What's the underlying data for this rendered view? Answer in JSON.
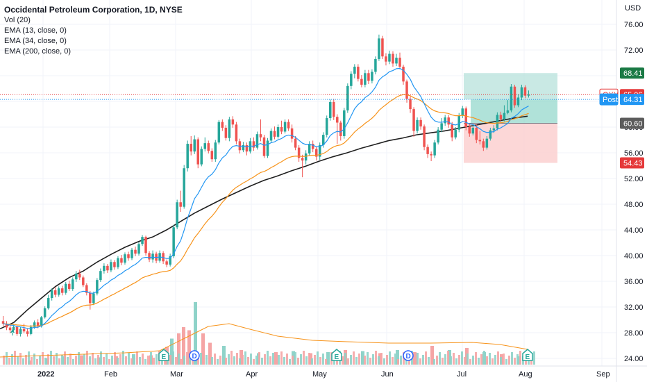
{
  "header": {
    "title": "Occidental Petroleum Corporation, 1D, NYSE",
    "indicators": [
      "Vol (20)",
      "EMA (13, close, 0)",
      "EMA (34, close, 0)",
      "EMA (200, close, 0)"
    ],
    "currency": "USD"
  },
  "colors": {
    "up": "#26a69a",
    "down": "#ef5350",
    "ema13": "#2196f3",
    "ema34": "#f7931a",
    "ema200": "#1f1f1f",
    "vol_up": "#8fd3c9",
    "vol_down": "#f5a5a5",
    "profit_zone": "#b2e0d8",
    "stop_zone": "#fbd0d0",
    "tag_green": "#1b7a45",
    "tag_red": "#e5393a",
    "tag_gray": "#5c5c5c",
    "tag_blue": "#2196f3"
  },
  "chart_data": {
    "type": "candlestick",
    "y_ticks": [
      "76.00",
      "72.00",
      "68.00",
      "64.00",
      "60.00",
      "56.00",
      "52.00",
      "48.00",
      "44.00",
      "40.00",
      "36.00",
      "32.00",
      "28.00",
      "24.00"
    ],
    "x_ticks": [
      "2022",
      "Feb",
      "Mar",
      "Apr",
      "May",
      "Jun",
      "Jul",
      "Aug",
      "Sep"
    ],
    "candles": [
      [
        29.8,
        29.4,
        30.6,
        29.0
      ],
      [
        29.4,
        28.8,
        29.8,
        28.4
      ],
      [
        28.8,
        28.4,
        29.2,
        27.9
      ],
      [
        28.4,
        28.9,
        29.3,
        28.1
      ],
      [
        28.9,
        27.8,
        29.1,
        27.5
      ],
      [
        27.8,
        28.6,
        28.9,
        27.4
      ],
      [
        28.6,
        28.2,
        29.4,
        27.9
      ],
      [
        28.2,
        27.8,
        28.6,
        27.4
      ],
      [
        27.8,
        28.9,
        29.2,
        27.6
      ],
      [
        28.9,
        29.6,
        29.9,
        28.6
      ],
      [
        29.6,
        29.0,
        30.1,
        28.7
      ],
      [
        29.0,
        30.4,
        30.6,
        28.8
      ],
      [
        30.4,
        31.8,
        32.1,
        30.2
      ],
      [
        31.8,
        33.4,
        33.9,
        31.6
      ],
      [
        33.4,
        34.6,
        34.9,
        33.0
      ],
      [
        34.6,
        33.9,
        35.1,
        33.5
      ],
      [
        33.9,
        34.9,
        35.2,
        33.6
      ],
      [
        34.9,
        34.2,
        35.3,
        33.8
      ],
      [
        34.2,
        35.6,
        35.9,
        33.9
      ],
      [
        35.6,
        34.8,
        36.1,
        34.5
      ],
      [
        34.8,
        36.3,
        36.6,
        34.5
      ],
      [
        36.3,
        37.2,
        37.6,
        35.9
      ],
      [
        37.2,
        36.6,
        37.8,
        36.2
      ],
      [
        36.6,
        35.4,
        36.9,
        35.1
      ],
      [
        35.4,
        34.2,
        35.7,
        33.8
      ],
      [
        34.2,
        32.6,
        34.5,
        31.6
      ],
      [
        32.6,
        34.1,
        34.4,
        32.3
      ],
      [
        34.1,
        36.2,
        36.5,
        33.8
      ],
      [
        36.2,
        37.6,
        38.0,
        35.9
      ],
      [
        37.6,
        38.4,
        38.8,
        37.2
      ],
      [
        38.4,
        37.7,
        38.7,
        37.3
      ],
      [
        37.7,
        39.0,
        39.4,
        37.4
      ],
      [
        39.0,
        38.2,
        39.3,
        37.8
      ],
      [
        38.2,
        39.6,
        39.9,
        37.9
      ],
      [
        39.6,
        38.9,
        40.1,
        38.5
      ],
      [
        38.9,
        40.2,
        40.5,
        38.6
      ],
      [
        40.2,
        39.6,
        40.6,
        39.2
      ],
      [
        39.6,
        40.9,
        41.2,
        39.3
      ],
      [
        40.9,
        40.3,
        41.4,
        39.9
      ],
      [
        40.3,
        41.8,
        42.1,
        40.0
      ],
      [
        41.8,
        42.9,
        43.2,
        41.5
      ],
      [
        42.9,
        40.4,
        43.1,
        40.0
      ],
      [
        40.4,
        39.4,
        40.7,
        39.0
      ],
      [
        39.4,
        40.3,
        40.8,
        38.9
      ],
      [
        40.3,
        39.2,
        40.6,
        38.8
      ],
      [
        39.2,
        40.4,
        40.8,
        38.9
      ],
      [
        40.4,
        39.1,
        40.7,
        38.7
      ],
      [
        39.1,
        38.6,
        39.4,
        38.2
      ],
      [
        38.6,
        39.9,
        40.3,
        38.3
      ],
      [
        39.9,
        44.4,
        44.8,
        39.6
      ],
      [
        44.4,
        48.3,
        48.7,
        44.1
      ],
      [
        48.3,
        47.6,
        50.1,
        46.8
      ],
      [
        47.6,
        53.6,
        54.1,
        47.3
      ],
      [
        53.6,
        57.4,
        57.9,
        53.1
      ],
      [
        57.4,
        56.2,
        58.6,
        55.6
      ],
      [
        56.2,
        58.1,
        58.7,
        55.8
      ],
      [
        58.1,
        54.2,
        58.4,
        53.6
      ],
      [
        54.2,
        56.6,
        57.0,
        53.9
      ],
      [
        56.6,
        57.5,
        58.4,
        56.2
      ],
      [
        57.5,
        56.3,
        57.9,
        55.9
      ],
      [
        56.3,
        55.0,
        56.7,
        54.6
      ],
      [
        55.0,
        57.6,
        58.0,
        54.6
      ],
      [
        57.6,
        60.8,
        61.1,
        57.3
      ],
      [
        60.8,
        59.9,
        61.2,
        59.4
      ],
      [
        59.9,
        58.3,
        60.3,
        57.9
      ],
      [
        58.3,
        61.2,
        61.6,
        57.8
      ],
      [
        61.2,
        60.4,
        61.7,
        59.9
      ],
      [
        60.4,
        57.8,
        60.8,
        57.3
      ],
      [
        57.8,
        56.4,
        58.2,
        55.9
      ],
      [
        56.4,
        57.2,
        57.7,
        56.1
      ],
      [
        57.2,
        56.2,
        57.6,
        55.6
      ],
      [
        56.2,
        57.8,
        58.3,
        55.9
      ],
      [
        57.8,
        56.8,
        58.4,
        56.3
      ],
      [
        56.8,
        58.9,
        59.3,
        56.5
      ],
      [
        58.9,
        58.4,
        61.2,
        57.8
      ],
      [
        58.4,
        55.5,
        58.8,
        55.2
      ],
      [
        55.5,
        57.9,
        58.3,
        55.2
      ],
      [
        57.9,
        59.4,
        59.8,
        57.6
      ],
      [
        59.4,
        58.5,
        60.1,
        58.1
      ],
      [
        58.5,
        60.0,
        60.4,
        58.2
      ],
      [
        60.0,
        59.3,
        61.0,
        58.9
      ],
      [
        59.3,
        60.8,
        61.2,
        59.0
      ],
      [
        60.8,
        59.8,
        61.2,
        59.4
      ],
      [
        59.8,
        58.2,
        60.4,
        57.6
      ],
      [
        58.2,
        56.8,
        58.6,
        56.4
      ],
      [
        56.8,
        55.2,
        57.2,
        54.6
      ],
      [
        55.2,
        54.8,
        55.7,
        52.2
      ],
      [
        54.8,
        55.9,
        56.4,
        54.2
      ],
      [
        55.9,
        57.4,
        57.8,
        55.6
      ],
      [
        57.4,
        56.6,
        57.9,
        56.1
      ],
      [
        56.6,
        55.4,
        57.0,
        54.8
      ],
      [
        55.4,
        57.2,
        57.6,
        54.9
      ],
      [
        57.2,
        58.8,
        59.2,
        56.8
      ],
      [
        58.8,
        61.4,
        61.8,
        58.4
      ],
      [
        61.4,
        63.9,
        64.3,
        61.0
      ],
      [
        63.9,
        61.6,
        64.4,
        61.1
      ],
      [
        61.6,
        60.7,
        62.0,
        57.4
      ],
      [
        60.7,
        58.6,
        61.0,
        57.9
      ],
      [
        58.6,
        62.6,
        63.0,
        58.2
      ],
      [
        62.6,
        66.4,
        66.8,
        62.2
      ],
      [
        66.4,
        68.3,
        68.7,
        65.9
      ],
      [
        68.3,
        69.4,
        69.8,
        67.6
      ],
      [
        69.4,
        67.5,
        69.8,
        67.1
      ],
      [
        67.5,
        66.6,
        68.1,
        66.2
      ],
      [
        66.6,
        68.4,
        68.9,
        66.2
      ],
      [
        68.4,
        67.2,
        68.9,
        66.7
      ],
      [
        67.2,
        68.6,
        69.0,
        66.8
      ],
      [
        68.6,
        70.6,
        71.0,
        68.2
      ],
      [
        70.6,
        73.8,
        74.4,
        70.3
      ],
      [
        73.8,
        71.0,
        74.2,
        70.6
      ],
      [
        71.0,
        70.2,
        71.5,
        69.6
      ],
      [
        70.2,
        71.4,
        71.9,
        69.8
      ],
      [
        71.4,
        69.9,
        71.8,
        69.4
      ],
      [
        69.9,
        70.8,
        71.4,
        69.5
      ],
      [
        70.8,
        69.4,
        71.6,
        69.0
      ],
      [
        69.4,
        67.1,
        69.7,
        66.6
      ],
      [
        67.1,
        64.4,
        67.4,
        63.8
      ],
      [
        64.4,
        62.8,
        64.8,
        62.2
      ],
      [
        62.8,
        59.4,
        63.1,
        58.5
      ],
      [
        59.4,
        61.1,
        61.5,
        59.0
      ],
      [
        61.1,
        60.1,
        61.5,
        59.6
      ],
      [
        60.1,
        56.9,
        60.4,
        56.4
      ],
      [
        56.9,
        55.8,
        57.3,
        55.2
      ],
      [
        55.8,
        55.6,
        56.2,
        54.7
      ],
      [
        55.6,
        57.6,
        58.0,
        55.2
      ],
      [
        57.6,
        59.6,
        60.0,
        57.3
      ],
      [
        59.6,
        60.6,
        61.4,
        59.2
      ],
      [
        60.6,
        61.5,
        61.9,
        60.2
      ],
      [
        61.5,
        60.4,
        61.9,
        59.9
      ],
      [
        60.4,
        58.4,
        60.8,
        57.8
      ],
      [
        58.4,
        59.6,
        60.0,
        58.1
      ],
      [
        59.6,
        61.8,
        62.2,
        59.2
      ],
      [
        61.8,
        62.9,
        63.3,
        61.4
      ],
      [
        62.9,
        60.0,
        63.2,
        59.5
      ],
      [
        60.0,
        59.0,
        60.6,
        58.5
      ],
      [
        59.0,
        59.9,
        60.5,
        58.7
      ],
      [
        59.9,
        58.0,
        60.4,
        57.5
      ],
      [
        58.0,
        57.8,
        59.4,
        57.3
      ],
      [
        57.8,
        56.8,
        58.2,
        56.3
      ],
      [
        56.8,
        58.2,
        58.6,
        56.5
      ],
      [
        58.2,
        59.5,
        59.9,
        57.9
      ],
      [
        59.5,
        59.8,
        60.3,
        59.1
      ],
      [
        59.8,
        61.9,
        62.3,
        59.5
      ],
      [
        61.9,
        61.2,
        62.4,
        60.8
      ],
      [
        61.2,
        62.2,
        63.4,
        60.9
      ],
      [
        62.2,
        62.6,
        64.2,
        62.0
      ],
      [
        62.6,
        66.3,
        66.7,
        62.3
      ],
      [
        66.3,
        63.4,
        66.6,
        63.0
      ],
      [
        63.4,
        64.6,
        65.1,
        63.1
      ],
      [
        64.6,
        66.2,
        66.6,
        64.2
      ],
      [
        66.2,
        64.9,
        66.5,
        64.5
      ],
      [
        64.9,
        65.06,
        65.7,
        64.6
      ]
    ],
    "ema200": [
      [
        0,
        28.6
      ],
      [
        20,
        29.6
      ],
      [
        40,
        31.6
      ],
      [
        60,
        33.4
      ],
      [
        80,
        35.2
      ],
      [
        100,
        36.6
      ],
      [
        120,
        37.6
      ],
      [
        140,
        39.0
      ],
      [
        160,
        40.2
      ],
      [
        180,
        41.3
      ],
      [
        200,
        42.2
      ],
      [
        220,
        42.9
      ],
      [
        240,
        44.0
      ],
      [
        260,
        45.3
      ],
      [
        280,
        46.6
      ],
      [
        300,
        47.7
      ],
      [
        320,
        48.8
      ],
      [
        340,
        49.8
      ],
      [
        360,
        50.8
      ],
      [
        380,
        51.7
      ],
      [
        400,
        52.4
      ],
      [
        420,
        53.2
      ],
      [
        440,
        53.9
      ],
      [
        460,
        54.7
      ],
      [
        480,
        55.4
      ],
      [
        500,
        56.0
      ],
      [
        520,
        56.7
      ],
      [
        540,
        57.3
      ],
      [
        560,
        57.9
      ],
      [
        580,
        58.3
      ],
      [
        600,
        58.8
      ],
      [
        620,
        59.1
      ],
      [
        640,
        59.4
      ],
      [
        660,
        59.8
      ],
      [
        680,
        60.2
      ],
      [
        700,
        60.6
      ],
      [
        720,
        61.0
      ],
      [
        740,
        61.4
      ],
      [
        760,
        61.7
      ]
    ],
    "volume": {
      "label": "Vol (20)",
      "bars": [
        {
          "x": 40,
          "h": 4,
          "up": false
        },
        {
          "x": 65,
          "h": 6,
          "up": true
        },
        {
          "x": 90,
          "h": 8,
          "up": true
        },
        {
          "x": 115,
          "h": 9,
          "up": false
        },
        {
          "x": 140,
          "h": 7,
          "up": true
        },
        {
          "x": 165,
          "h": 8,
          "up": false
        },
        {
          "x": 190,
          "h": 10,
          "up": true
        },
        {
          "x": 215,
          "h": 9,
          "up": false
        },
        {
          "x": 238,
          "h": 17,
          "up": false
        },
        {
          "x": 245,
          "h": 25,
          "up": true
        },
        {
          "x": 255,
          "h": 30,
          "up": false
        },
        {
          "x": 262,
          "h": 36,
          "up": false
        },
        {
          "x": 270,
          "h": 33,
          "up": false
        },
        {
          "x": 279,
          "h": 60,
          "up": true
        },
        {
          "x": 290,
          "h": 30,
          "up": false
        },
        {
          "x": 300,
          "h": 21,
          "up": false
        },
        {
          "x": 320,
          "h": 18,
          "up": true
        },
        {
          "x": 345,
          "h": 14,
          "up": false
        },
        {
          "x": 370,
          "h": 11,
          "up": true
        },
        {
          "x": 395,
          "h": 12,
          "up": false
        },
        {
          "x": 420,
          "h": 13,
          "up": true
        },
        {
          "x": 445,
          "h": 11,
          "up": false
        },
        {
          "x": 470,
          "h": 12,
          "up": true
        },
        {
          "x": 495,
          "h": 14,
          "up": false
        },
        {
          "x": 520,
          "h": 13,
          "up": true
        },
        {
          "x": 545,
          "h": 11,
          "up": false
        },
        {
          "x": 570,
          "h": 14,
          "up": true
        },
        {
          "x": 595,
          "h": 12,
          "up": false
        },
        {
          "x": 620,
          "h": 18,
          "up": false
        },
        {
          "x": 645,
          "h": 14,
          "up": true
        },
        {
          "x": 670,
          "h": 16,
          "up": false
        },
        {
          "x": 695,
          "h": 12,
          "up": true
        },
        {
          "x": 720,
          "h": 10,
          "up": false
        },
        {
          "x": 745,
          "h": 8,
          "up": true
        }
      ]
    },
    "position": {
      "entry": 64.31,
      "target": 68.41,
      "stop": 60.6,
      "stop_low": 54.43,
      "x_start": 668,
      "x_end": 803
    },
    "price_tags": [
      {
        "label": "68.41",
        "value": 68.41,
        "color": "#1b7a45"
      },
      {
        "label": "65.06",
        "value": 65.06,
        "color": "#e5393a",
        "prefix": "OXY"
      },
      {
        "label": "64.31",
        "value": 64.31,
        "color": "#2196f3",
        "prefix": "Post"
      },
      {
        "label": "60.60",
        "value": 60.6,
        "color": "#5c5c5c"
      },
      {
        "label": "54.43",
        "value": 54.43,
        "color": "#e5393a"
      }
    ],
    "events": [
      {
        "label": "E",
        "x": 236,
        "type": "earnings"
      },
      {
        "label": "D",
        "x": 280,
        "type": "dividend"
      },
      {
        "label": "E",
        "x": 485,
        "type": "earnings"
      },
      {
        "label": "D",
        "x": 588,
        "type": "dividend"
      },
      {
        "label": "E",
        "x": 760,
        "type": "earnings"
      }
    ],
    "dot_marker": {
      "x": 18,
      "y": 478
    }
  }
}
